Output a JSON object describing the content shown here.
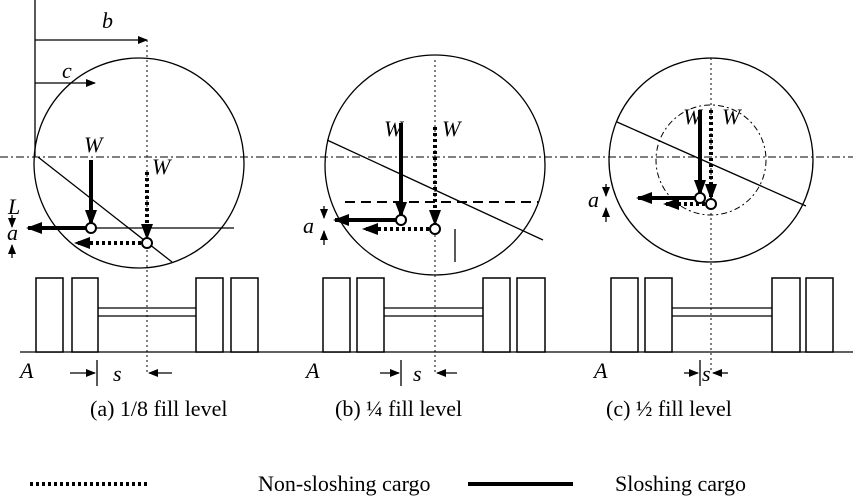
{
  "panels": [
    {
      "caption": "(a)  1/8 fill level",
      "b": "b",
      "c": "c",
      "w_solid": "W",
      "w_dotted": "W",
      "l": "L",
      "a": "a",
      "ground": "A",
      "s": "s"
    },
    {
      "caption": "(b)   ¼ fill level",
      "w_solid": "W",
      "w_dotted": "W",
      "a": "a",
      "ground": "A",
      "s": "s"
    },
    {
      "caption": "(c) ½ fill level",
      "w_solid": "W",
      "w_dotted": "W",
      "a": "a",
      "ground": "A",
      "s": "s"
    }
  ],
  "legend": [
    {
      "label": "Non-sloshing cargo"
    },
    {
      "label": "Sloshing cargo"
    }
  ]
}
